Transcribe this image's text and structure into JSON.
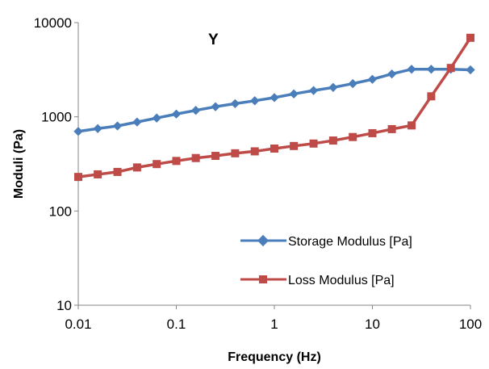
{
  "chart_data": {
    "type": "line",
    "title": "Y",
    "xlabel": "Frequency (Hz)",
    "ylabel": "Moduli (Pa)",
    "x_scale": "log",
    "y_scale": "log",
    "xlim": [
      0.01,
      100
    ],
    "ylim": [
      10,
      10000
    ],
    "x_ticks": [
      "0.01",
      "0.1",
      "1",
      "10",
      "100"
    ],
    "y_ticks": [
      "10",
      "100",
      "1000",
      "10000"
    ],
    "grid": false,
    "legend_position": "bottom-right",
    "x": [
      0.01,
      0.0158,
      0.0251,
      0.0398,
      0.0631,
      0.1,
      0.158,
      0.251,
      0.398,
      0.631,
      1,
      1.58,
      2.51,
      3.98,
      6.31,
      10,
      15.8,
      25.1,
      39.8,
      63.1,
      100
    ],
    "series": [
      {
        "name": "Storage Modulus [Pa]",
        "color": "#4A7EBB",
        "marker": "diamond",
        "values": [
          700,
          750,
          800,
          880,
          970,
          1070,
          1170,
          1280,
          1380,
          1480,
          1600,
          1750,
          1900,
          2050,
          2250,
          2500,
          2850,
          3200,
          3200,
          3200,
          3150
        ]
      },
      {
        "name": "Loss Modulus [Pa]",
        "color": "#BE4B48",
        "marker": "square",
        "values": [
          230,
          245,
          260,
          290,
          315,
          340,
          365,
          385,
          410,
          430,
          460,
          490,
          520,
          560,
          610,
          670,
          740,
          810,
          1650,
          3300,
          6900
        ]
      }
    ]
  }
}
